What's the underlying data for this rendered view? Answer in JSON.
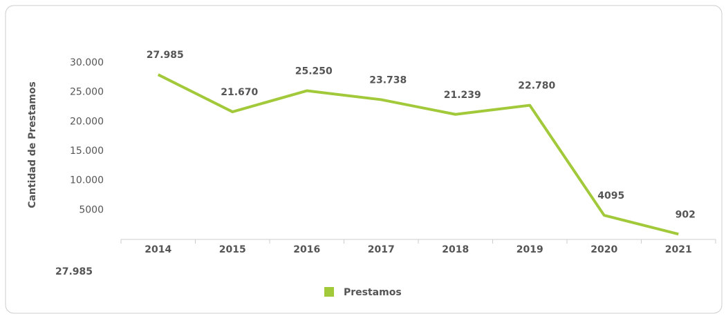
{
  "chart_data": {
    "type": "line",
    "y_label": "Cantidad de Prestamos",
    "categories": [
      "2014",
      "2015",
      "2016",
      "2017",
      "2018",
      "2019",
      "2020",
      "2021"
    ],
    "series": [
      {
        "name": "Prestamos",
        "color": "#a2c93a",
        "values": [
          27985,
          21670,
          25250,
          23738,
          21239,
          22780,
          4095,
          902
        ],
        "value_labels": [
          "27.985",
          "21.670",
          "25.250",
          "23.738",
          "21.239",
          "22.780",
          "4095",
          "902"
        ]
      }
    ],
    "ylim": [
      0,
      30000
    ],
    "yticks": [
      5000,
      {
        "value": 10000,
        "label": "10.000"
      },
      {
        "value": 15000,
        "label": "15.000"
      },
      {
        "value": 20000,
        "label": "20.000"
      },
      {
        "value": 25000,
        "label": "25.000"
      },
      {
        "value": 30000,
        "label": "30.000"
      }
    ],
    "annotation": "27.985",
    "legend": "bottom"
  }
}
